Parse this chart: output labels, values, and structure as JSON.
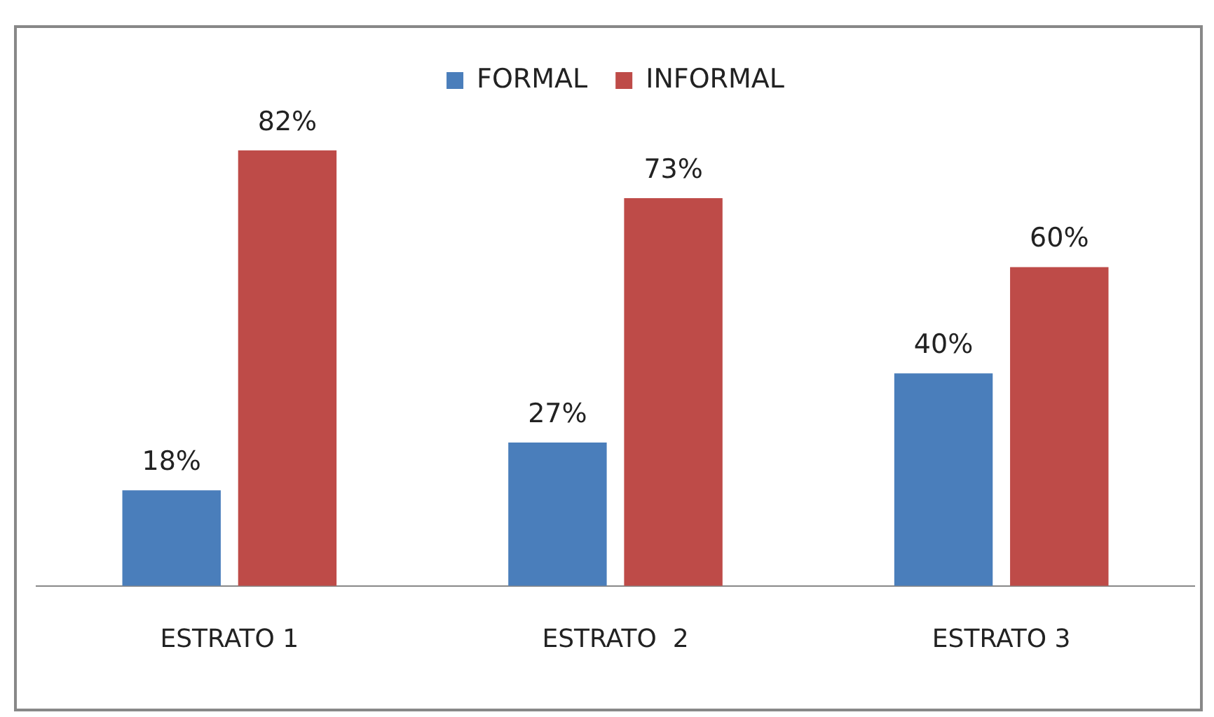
{
  "chart_data": {
    "type": "bar",
    "categories": [
      "ESTRATO 1",
      "ESTRATO  2",
      "ESTRATO 3"
    ],
    "series": [
      {
        "name": "FORMAL",
        "color": "#4a7ebb",
        "values": [
          18,
          27,
          40
        ],
        "value_labels": [
          "18%",
          "27%",
          "40%"
        ]
      },
      {
        "name": "INFORMAL",
        "color": "#be4b48",
        "values": [
          82,
          73,
          60
        ],
        "value_labels": [
          "82%",
          "73%",
          "60%"
        ]
      }
    ],
    "legend": "top",
    "grid": false
  }
}
